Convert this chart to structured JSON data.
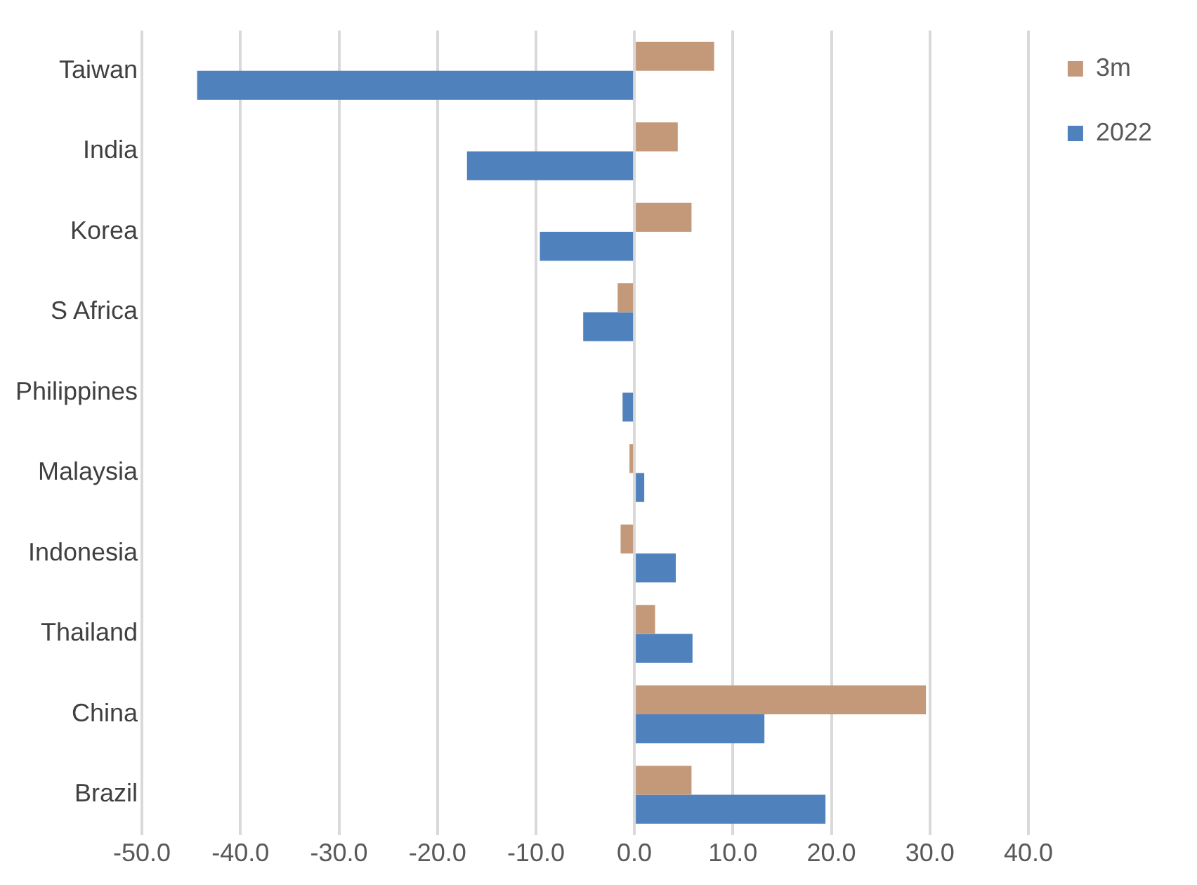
{
  "chart_data": {
    "type": "bar",
    "orientation": "horizontal",
    "categories": [
      "Taiwan",
      "India",
      "Korea",
      "S Africa",
      "Philippines",
      "Malaysia",
      "Indonesia",
      "Thailand",
      "China",
      "Brazil"
    ],
    "series": [
      {
        "name": "3m",
        "color": "#c4997a",
        "values": [
          8.1,
          4.4,
          5.8,
          -1.7,
          0,
          -0.5,
          -1.4,
          2.1,
          29.6,
          5.8
        ]
      },
      {
        "name": "2022",
        "color": "#4f81bd",
        "values": [
          -44.4,
          -17.0,
          -9.6,
          -5.2,
          -1.2,
          1.0,
          4.2,
          5.9,
          13.2,
          19.4
        ]
      }
    ],
    "xlim": [
      -50,
      40
    ],
    "xticks": [
      {
        "value": -50,
        "label": "-50.0"
      },
      {
        "value": -40,
        "label": "-40.0"
      },
      {
        "value": -30,
        "label": "-30.0"
      },
      {
        "value": -20,
        "label": "-20.0"
      },
      {
        "value": -10,
        "label": "-10.0"
      },
      {
        "value": 0,
        "label": "0.0"
      },
      {
        "value": 10,
        "label": "10.0"
      },
      {
        "value": 20,
        "label": "20.0"
      },
      {
        "value": 30,
        "label": "30.0"
      },
      {
        "value": 40,
        "label": "40.0"
      }
    ],
    "grid": "x",
    "legend": "right"
  }
}
